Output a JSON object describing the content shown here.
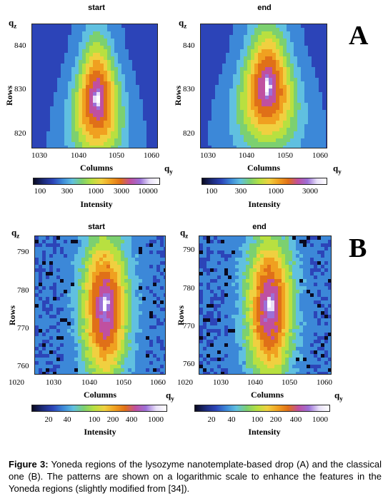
{
  "panels": {
    "A": {
      "letter": "A",
      "left": {
        "title": "start",
        "qz": "q",
        "qz_sub": "z",
        "qy": "q",
        "qy_sub": "y",
        "rows_label": "Rows",
        "cols_label": "Columns",
        "y_ticks": [
          "840",
          "830",
          "820"
        ],
        "x_ticks": [
          "1030",
          "1040",
          "1050",
          "1060"
        ],
        "colorbar": {
          "label": "Intensity",
          "ticks": [
            "100",
            "300",
            "1000",
            "3000",
            "10000"
          ]
        }
      },
      "right": {
        "title": "end",
        "qz": "q",
        "qz_sub": "z",
        "qy": "q",
        "qy_sub": "y",
        "rows_label": "Rows",
        "cols_label": "Columns",
        "y_ticks": [
          "840",
          "830",
          "820"
        ],
        "x_ticks": [
          "1030",
          "1040",
          "1050",
          "1060"
        ],
        "colorbar": {
          "label": "Intensity",
          "ticks": [
            "100",
            "300",
            "1000",
            "3000"
          ]
        }
      }
    },
    "B": {
      "letter": "B",
      "left": {
        "title": "start",
        "qz": "q",
        "qz_sub": "z",
        "qy": "q",
        "qy_sub": "y",
        "rows_label": "Rows",
        "cols_label": "Columns",
        "y_ticks": [
          "790",
          "780",
          "770",
          "760"
        ],
        "x_ticks": [
          "1020",
          "1030",
          "1040",
          "1050",
          "1060"
        ],
        "colorbar": {
          "label": "Intensity",
          "ticks": [
            "20",
            "40",
            "100",
            "200",
            "400",
            "1000"
          ]
        }
      },
      "right": {
        "title": "end",
        "qz": "q",
        "qz_sub": "z",
        "qy": "q",
        "qy_sub": "y",
        "rows_label": "Rows",
        "cols_label": "Columns",
        "y_ticks": [
          "790",
          "780",
          "770",
          "760"
        ],
        "x_ticks": [
          "1020",
          "1030",
          "1040",
          "1050",
          "1060"
        ],
        "colorbar": {
          "label": "Intensity",
          "ticks": [
            "20",
            "40",
            "100",
            "200",
            "400",
            "1000"
          ]
        }
      }
    }
  },
  "caption": {
    "label": "Figure 3:",
    "text": " Yoneda regions of the lysozyme nanotemplate-based drop (A) and the classical one (B). The patterns are shown on a logarithmic scale to enhance the features in the Yoneda regions (slightly modified from [34])."
  },
  "colors": {
    "background_blue": "#2c3a98",
    "scale": [
      "#0a0a20",
      "#1c2a78",
      "#2c44b8",
      "#3c88d8",
      "#60c0e0",
      "#7cd070",
      "#b8e040",
      "#f0d040",
      "#f0a020",
      "#e07018",
      "#c050a0",
      "#9c70d8",
      "#e8e0f8",
      "#ffffff"
    ]
  }
}
